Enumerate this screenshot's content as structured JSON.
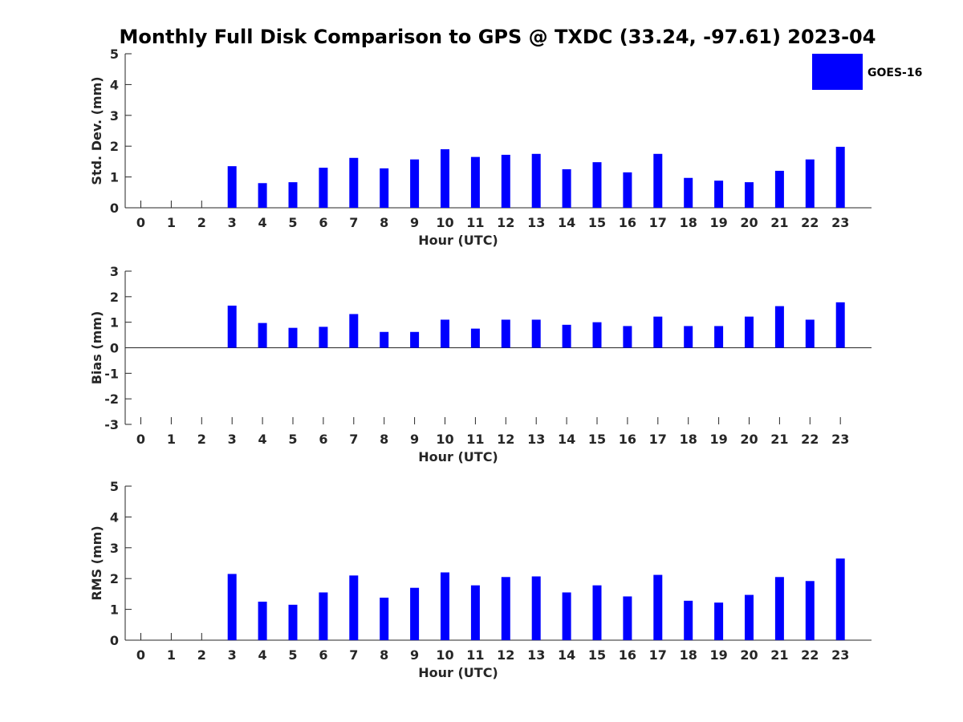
{
  "figure_title": "Monthly Full Disk Comparison to GPS @ TXDC (33.24, -97.61) 2023-04",
  "legend": {
    "label": "GOES-16",
    "color": "#0000ff"
  },
  "chart_data": [
    {
      "type": "bar",
      "name": "std_dev",
      "xlabel": "Hour (UTC)",
      "ylabel": "Std. Dev. (mm)",
      "ylim": [
        0,
        5
      ],
      "yticks": [
        "0",
        "1",
        "2",
        "3",
        "4",
        "5"
      ],
      "categories": [
        "0",
        "1",
        "2",
        "3",
        "4",
        "5",
        "6",
        "7",
        "8",
        "9",
        "10",
        "11",
        "12",
        "13",
        "14",
        "15",
        "16",
        "17",
        "18",
        "19",
        "20",
        "21",
        "22",
        "23"
      ],
      "series": [
        {
          "name": "GOES-16",
          "color": "#0000ff",
          "values": [
            null,
            null,
            null,
            1.35,
            0.8,
            0.83,
            1.3,
            1.62,
            1.28,
            1.57,
            1.9,
            1.65,
            1.72,
            1.75,
            1.25,
            1.48,
            1.15,
            1.75,
            0.97,
            0.88,
            0.83,
            1.2,
            1.57,
            1.98
          ]
        }
      ]
    },
    {
      "type": "bar",
      "name": "bias",
      "xlabel": "Hour (UTC)",
      "ylabel": "Bias (mm)",
      "ylim": [
        -3,
        3
      ],
      "yticks": [
        "-3",
        "-2",
        "-1",
        "0",
        "1",
        "2",
        "3"
      ],
      "categories": [
        "0",
        "1",
        "2",
        "3",
        "4",
        "5",
        "6",
        "7",
        "8",
        "9",
        "10",
        "11",
        "12",
        "13",
        "14",
        "15",
        "16",
        "17",
        "18",
        "19",
        "20",
        "21",
        "22",
        "23"
      ],
      "series": [
        {
          "name": "GOES-16",
          "color": "#0000ff",
          "values": [
            null,
            null,
            null,
            1.65,
            0.97,
            0.78,
            0.82,
            1.32,
            0.62,
            0.62,
            1.1,
            0.75,
            1.1,
            1.1,
            0.9,
            1.0,
            0.85,
            1.22,
            0.85,
            0.85,
            1.22,
            1.63,
            1.1,
            1.78
          ]
        }
      ]
    },
    {
      "type": "bar",
      "name": "rms",
      "xlabel": "Hour (UTC)",
      "ylabel": "RMS (mm)",
      "ylim": [
        0,
        5
      ],
      "yticks": [
        "0",
        "1",
        "2",
        "3",
        "4",
        "5"
      ],
      "categories": [
        "0",
        "1",
        "2",
        "3",
        "4",
        "5",
        "6",
        "7",
        "8",
        "9",
        "10",
        "11",
        "12",
        "13",
        "14",
        "15",
        "16",
        "17",
        "18",
        "19",
        "20",
        "21",
        "22",
        "23"
      ],
      "series": [
        {
          "name": "GOES-16",
          "color": "#0000ff",
          "values": [
            null,
            null,
            null,
            2.15,
            1.25,
            1.15,
            1.55,
            2.1,
            1.38,
            1.7,
            2.2,
            1.78,
            2.05,
            2.07,
            1.55,
            1.78,
            1.42,
            2.12,
            1.28,
            1.22,
            1.47,
            2.05,
            1.92,
            2.65
          ]
        }
      ]
    }
  ]
}
